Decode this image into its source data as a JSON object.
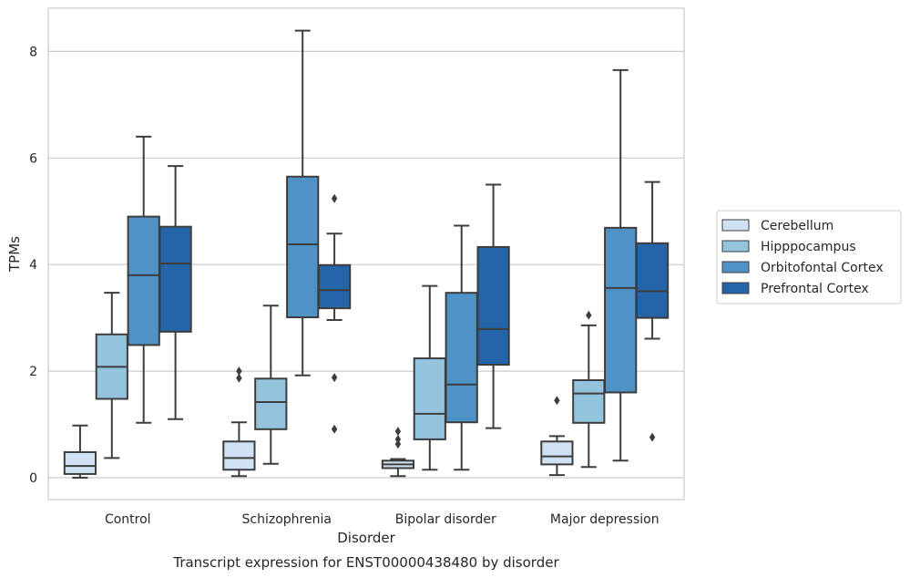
{
  "chart_data": {
    "type": "box",
    "title": "Transcript expression for ENST00000438480 by disorder",
    "xlabel": "Disorder",
    "ylabel": "TPMs",
    "ylim": [
      -0.4,
      8.8
    ],
    "yticks": [
      0,
      2,
      4,
      6,
      8
    ],
    "grid": "horizontal",
    "legend_position": "right",
    "categories": [
      "Control",
      "Schizophrenia",
      "Bipolar disorder",
      "Major depression"
    ],
    "series": [
      {
        "name": "Cerebellum",
        "color": "#cfe1f2",
        "boxes": [
          {
            "whisker_low": 0.0,
            "q1": 0.07,
            "median": 0.22,
            "q3": 0.48,
            "whisker_high": 0.98,
            "outliers": []
          },
          {
            "whisker_low": 0.03,
            "q1": 0.15,
            "median": 0.37,
            "q3": 0.68,
            "whisker_high": 1.04,
            "outliers": [
              1.87,
              2.0
            ]
          },
          {
            "whisker_low": 0.03,
            "q1": 0.18,
            "median": 0.25,
            "q3": 0.32,
            "whisker_high": 0.35,
            "outliers": [
              0.63,
              0.72,
              0.87
            ]
          },
          {
            "whisker_low": 0.05,
            "q1": 0.25,
            "median": 0.4,
            "q3": 0.68,
            "whisker_high": 0.78,
            "outliers": [
              1.45
            ]
          }
        ]
      },
      {
        "name": "Hipppocampus",
        "color": "#93c4de",
        "boxes": [
          {
            "whisker_low": 0.37,
            "q1": 1.48,
            "median": 2.08,
            "q3": 2.69,
            "whisker_high": 3.47,
            "outliers": []
          },
          {
            "whisker_low": 0.26,
            "q1": 0.91,
            "median": 1.42,
            "q3": 1.86,
            "whisker_high": 3.23,
            "outliers": []
          },
          {
            "whisker_low": 0.15,
            "q1": 0.72,
            "median": 1.2,
            "q3": 2.24,
            "whisker_high": 3.6,
            "outliers": []
          },
          {
            "whisker_low": 0.2,
            "q1": 1.03,
            "median": 1.58,
            "q3": 1.83,
            "whisker_high": 2.86,
            "outliers": [
              3.05
            ]
          }
        ]
      },
      {
        "name": "Orbitofontal Cortex",
        "color": "#4f93c6",
        "boxes": [
          {
            "whisker_low": 1.03,
            "q1": 2.49,
            "median": 3.8,
            "q3": 4.9,
            "whisker_high": 6.4,
            "outliers": []
          },
          {
            "whisker_low": 1.92,
            "q1": 3.01,
            "median": 4.38,
            "q3": 5.65,
            "whisker_high": 8.39,
            "outliers": []
          },
          {
            "whisker_low": 0.15,
            "q1": 1.04,
            "median": 1.75,
            "q3": 3.47,
            "whisker_high": 4.73,
            "outliers": []
          },
          {
            "whisker_low": 0.32,
            "q1": 1.6,
            "median": 3.56,
            "q3": 4.69,
            "whisker_high": 7.65,
            "outliers": []
          }
        ]
      },
      {
        "name": "Prefrontal Cortex",
        "color": "#2464a8",
        "boxes": [
          {
            "whisker_low": 1.1,
            "q1": 2.74,
            "median": 4.02,
            "q3": 4.71,
            "whisker_high": 5.85,
            "outliers": []
          },
          {
            "whisker_low": 2.96,
            "q1": 3.18,
            "median": 3.52,
            "q3": 3.99,
            "whisker_high": 4.58,
            "outliers": [
              0.91,
              1.88,
              5.24
            ]
          },
          {
            "whisker_low": 0.93,
            "q1": 2.12,
            "median": 2.79,
            "q3": 4.33,
            "whisker_high": 5.5,
            "outliers": []
          },
          {
            "whisker_low": 2.61,
            "q1": 3.0,
            "median": 3.5,
            "q3": 4.4,
            "whisker_high": 5.55,
            "outliers": [
              0.76
            ]
          }
        ]
      }
    ]
  }
}
